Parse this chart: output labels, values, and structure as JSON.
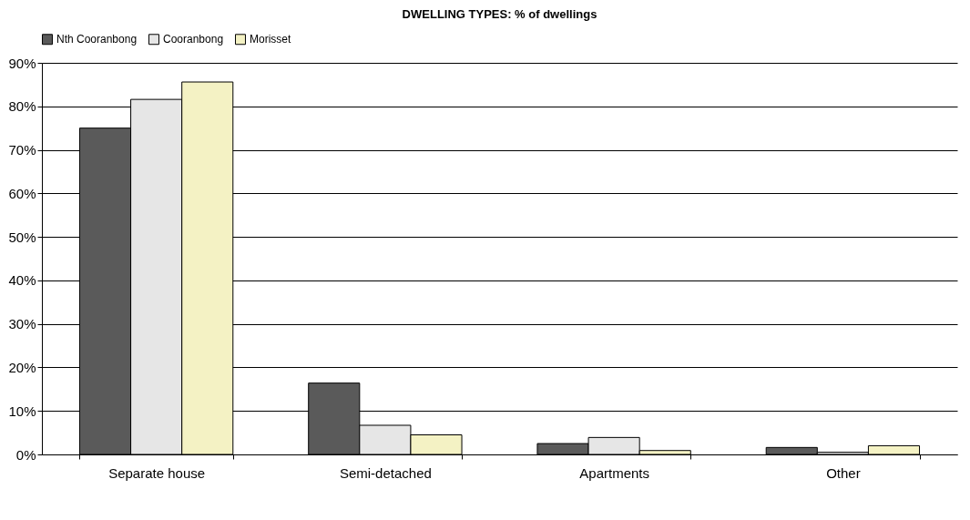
{
  "chart_data": {
    "type": "bar",
    "title": "DWELLING TYPES: % of dwellings",
    "categories": [
      "Separate house",
      "Semi-detached",
      "Apartments",
      "Other"
    ],
    "series": [
      {
        "name": "Nth Cooranbong",
        "color": "#5a5a5a",
        "values": [
          75,
          16.4,
          2.5,
          1.6
        ]
      },
      {
        "name": "Cooranbong",
        "color": "#e6e6e6",
        "values": [
          81.6,
          6.7,
          3.9,
          0.5
        ]
      },
      {
        "name": "Morisset",
        "color": "#f4f2c4",
        "values": [
          85.6,
          4.5,
          0.9,
          2.0
        ]
      }
    ],
    "ylim": [
      0,
      90
    ],
    "yticks": [
      {
        "value": 0,
        "label": "0%"
      },
      {
        "value": 10,
        "label": "10%"
      },
      {
        "value": 20,
        "label": "20%"
      },
      {
        "value": 30,
        "label": "30%"
      },
      {
        "value": 40,
        "label": "40%"
      },
      {
        "value": 50,
        "label": "50%"
      },
      {
        "value": 60,
        "label": "60%"
      },
      {
        "value": 70,
        "label": "70%"
      },
      {
        "value": 80,
        "label": "80%"
      },
      {
        "value": 90,
        "label": "90%"
      }
    ],
    "grid": "y",
    "legend": "top"
  }
}
